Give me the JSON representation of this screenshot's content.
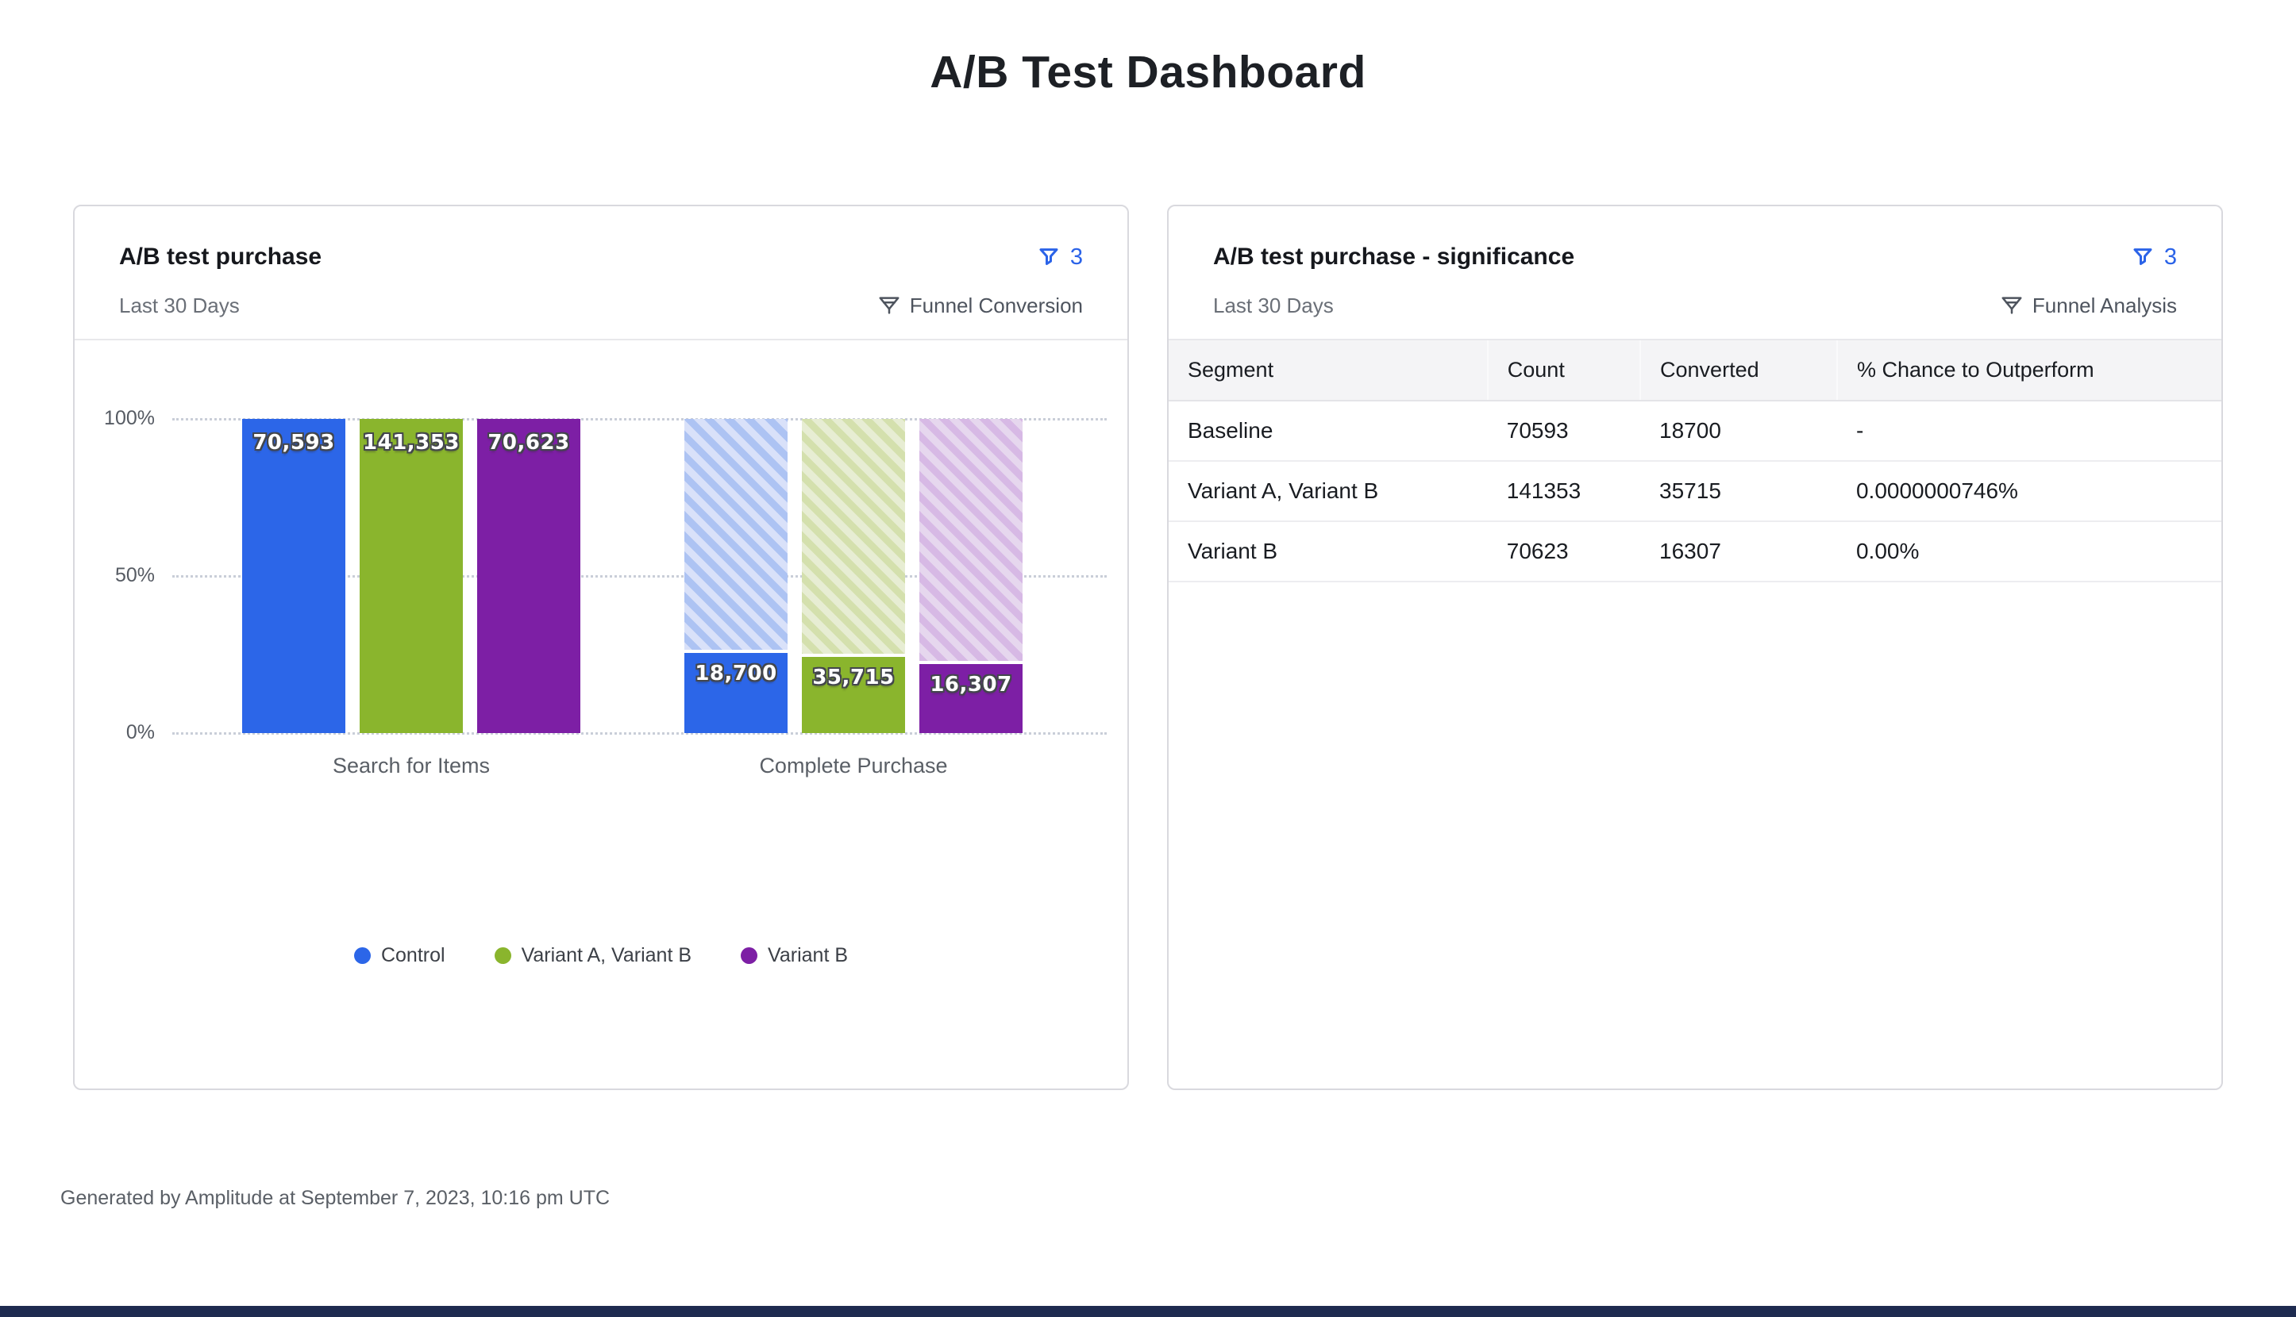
{
  "page": {
    "title": "A/B Test Dashboard",
    "footer": "Generated by Amplitude at September 7, 2023, 10:16 pm UTC"
  },
  "colors": {
    "accent_blue": "#2b63e8",
    "control_blue": "#2c66e8",
    "variant_ab_green": "#8ab52d",
    "variant_b_purple": "#7d1fa5",
    "gridline_gray": "#c9ced8",
    "bottom_bar_navy": "#1e2b50"
  },
  "left_card": {
    "title": "A/B test purchase",
    "date_range": "Last 30 Days",
    "filter_count": "3",
    "chart_type_label": "Funnel Conversion",
    "icons": [
      "filter-icon",
      "funnel-chart-icon"
    ]
  },
  "right_card": {
    "title": "A/B test purchase - significance",
    "date_range": "Last 30 Days",
    "filter_count": "3",
    "chart_type_label": "Funnel Analysis",
    "icons": [
      "filter-icon",
      "funnel-chart-icon"
    ],
    "table": {
      "columns": [
        "Segment",
        "Count",
        "Converted",
        "% Chance to Outperform"
      ],
      "rows": [
        [
          "Baseline",
          "70593",
          "18700",
          "-"
        ],
        [
          "Variant A, Variant B",
          "141353",
          "35715",
          "0.0000000746%"
        ],
        [
          "Variant B",
          "70623",
          "16307",
          "0.00%"
        ]
      ]
    }
  },
  "chart_data": {
    "type": "bar",
    "title": "A/B test purchase",
    "categories": [
      "Search for Items",
      "Complete Purchase"
    ],
    "yticks": [
      {
        "label": "100%",
        "value": 100
      },
      {
        "label": "50%",
        "value": 50
      },
      {
        "label": "0%",
        "value": 0
      }
    ],
    "ylim": [
      0,
      100
    ],
    "grid": "dotted-horizontal",
    "legend_position": "bottom",
    "series": [
      {
        "name": "Control",
        "color": "#2c66e8",
        "hatch": [
          "#d9e1f9",
          "#adc3f3"
        ],
        "values": [
          70593,
          18700
        ],
        "value_labels": [
          "70,593",
          "18,700"
        ],
        "step_percents": [
          100,
          26.5
        ]
      },
      {
        "name": "Variant A, Variant B",
        "color": "#8ab52d",
        "hatch": [
          "#e7edd3",
          "#d4e0ad"
        ],
        "values": [
          141353,
          35715
        ],
        "value_labels": [
          "141,353",
          "35,715"
        ],
        "step_percents": [
          100,
          25.3
        ]
      },
      {
        "name": "Variant B",
        "color": "#7d1fa5",
        "hatch": [
          "#e6d7ee",
          "#d7b9e5"
        ],
        "values": [
          70623,
          16307
        ],
        "value_labels": [
          "70,623",
          "16,307"
        ],
        "step_percents": [
          100,
          23.1
        ]
      }
    ]
  }
}
